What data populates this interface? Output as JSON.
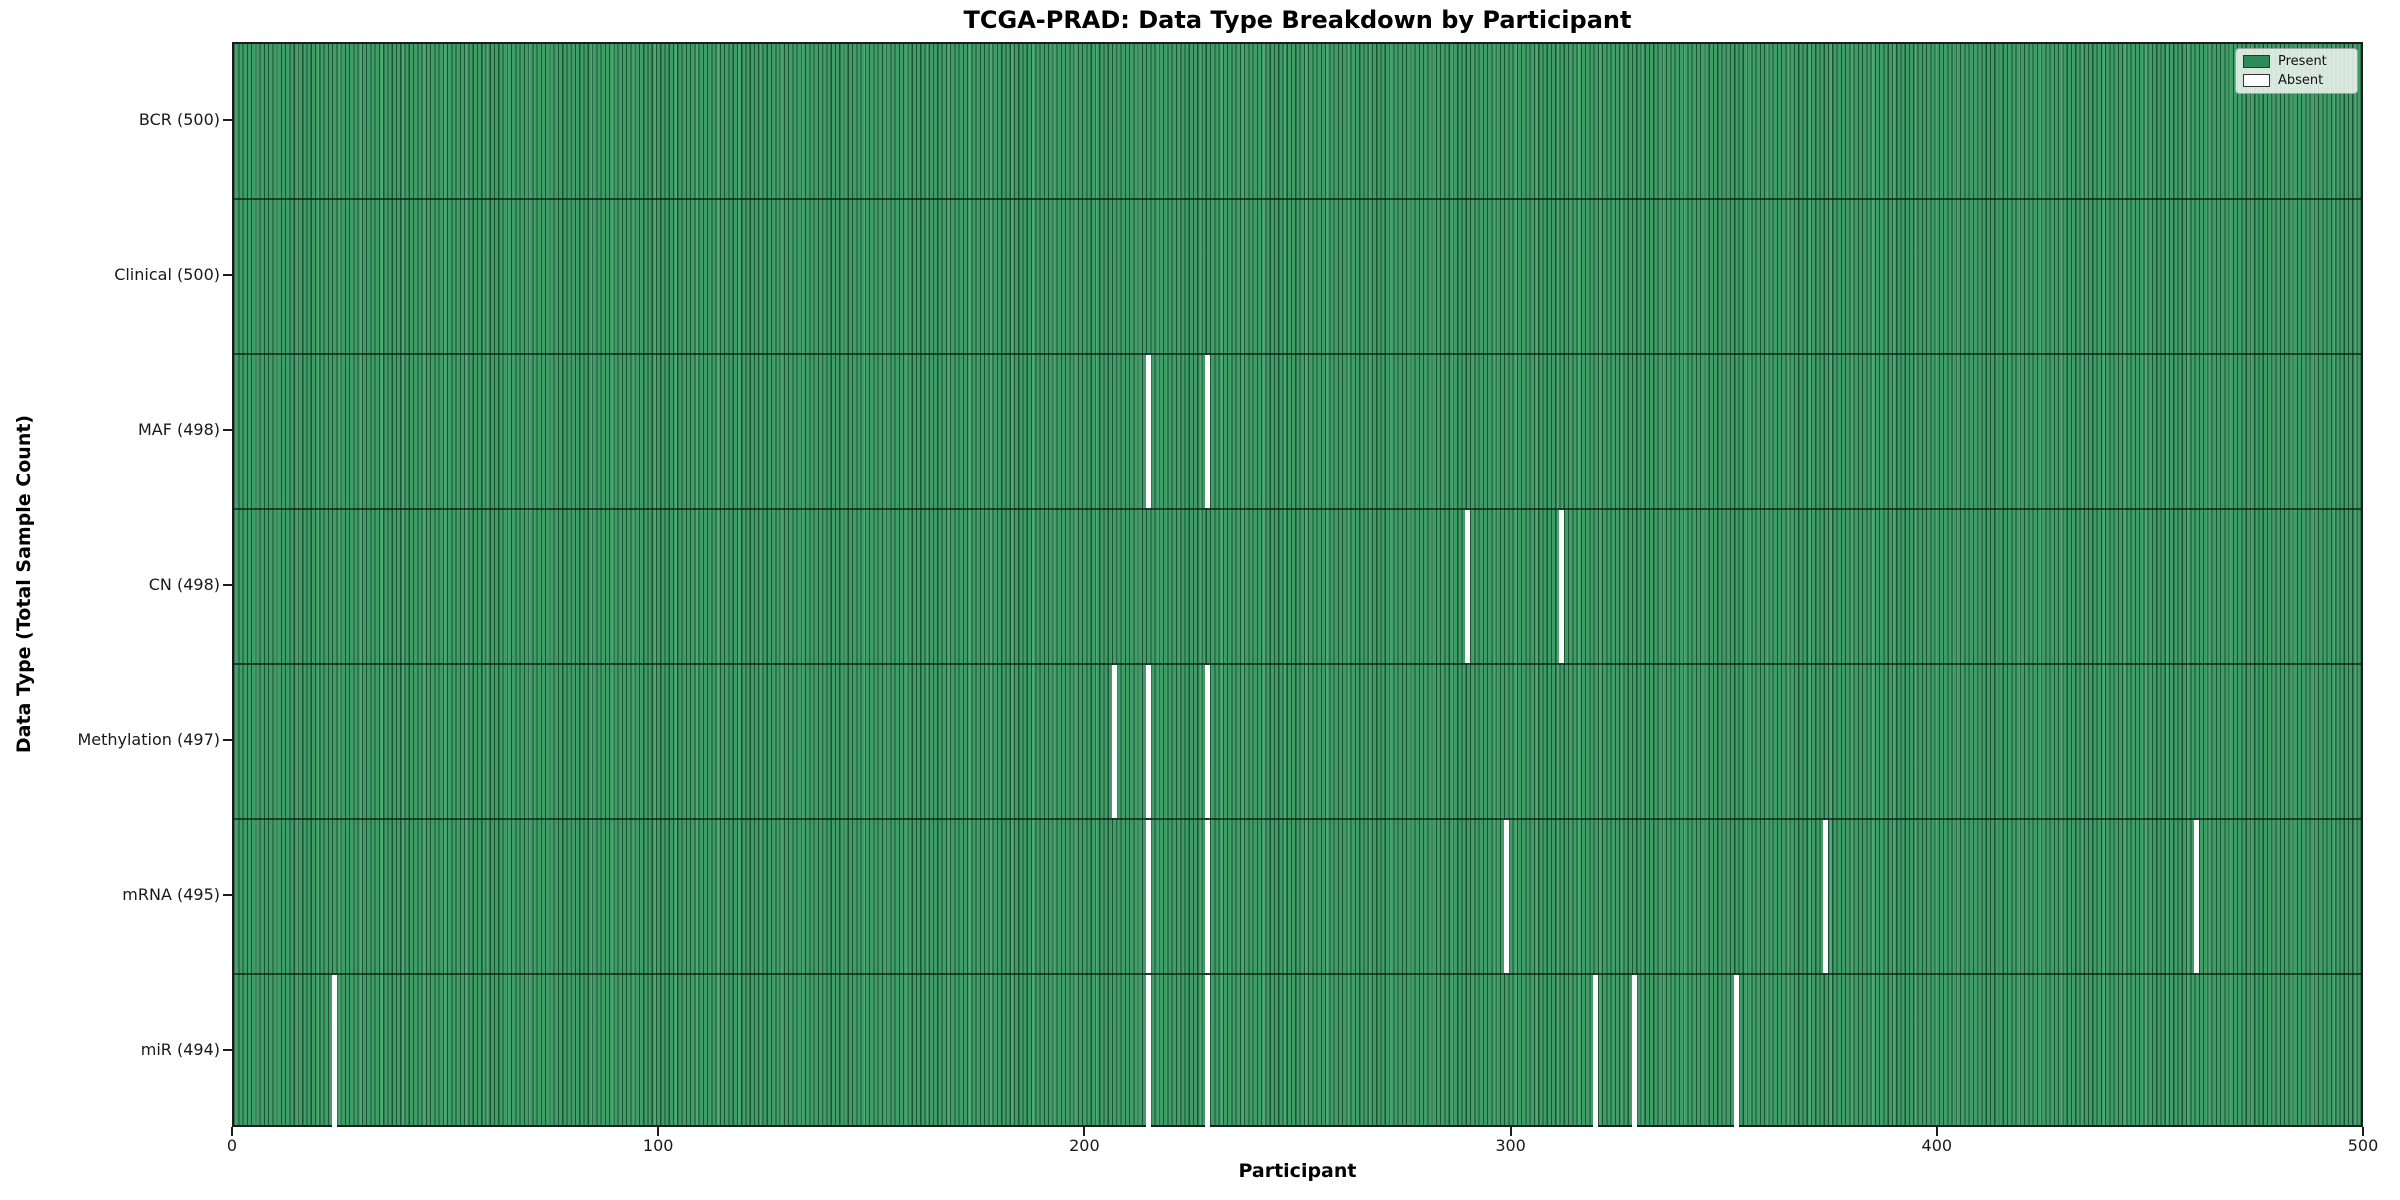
{
  "chart_data": {
    "type": "heatmap",
    "title": "TCGA-PRAD: Data Type Breakdown by Participant",
    "xlabel": "Participant",
    "ylabel": "Data Type (Total Sample Count)",
    "xlim": [
      0,
      500
    ],
    "x_ticks": [
      0,
      100,
      200,
      300,
      400,
      500
    ],
    "n_participants": 500,
    "grid": false,
    "legend_position": "upper right",
    "colors": {
      "present": "#2e8b57",
      "present_fill": "#3f9d68",
      "absent": "#ffffff",
      "edge": "#1c1c1c"
    },
    "legend": [
      {
        "label": "Present",
        "color": "#2e8b57"
      },
      {
        "label": "Absent",
        "color": "#ffffff"
      }
    ],
    "rows": [
      {
        "label": "BCR (500)",
        "data_type": "BCR",
        "total": 500,
        "absent_participants": []
      },
      {
        "label": "Clinical (500)",
        "data_type": "Clinical",
        "total": 500,
        "absent_participants": []
      },
      {
        "label": "MAF (498)",
        "data_type": "MAF",
        "total": 498,
        "absent_participants": [
          214,
          228
        ]
      },
      {
        "label": "CN (498)",
        "data_type": "CN",
        "total": 498,
        "absent_participants": [
          289,
          311
        ]
      },
      {
        "label": "Methylation (497)",
        "data_type": "Methylation",
        "total": 497,
        "absent_participants": [
          206,
          214,
          228
        ]
      },
      {
        "label": "mRNA (495)",
        "data_type": "mRNA",
        "total": 495,
        "absent_participants": [
          214,
          228,
          298,
          373,
          460
        ]
      },
      {
        "label": "miR (494)",
        "data_type": "miR",
        "total": 494,
        "absent_participants": [
          23,
          214,
          228,
          319,
          328,
          352
        ]
      }
    ]
  }
}
